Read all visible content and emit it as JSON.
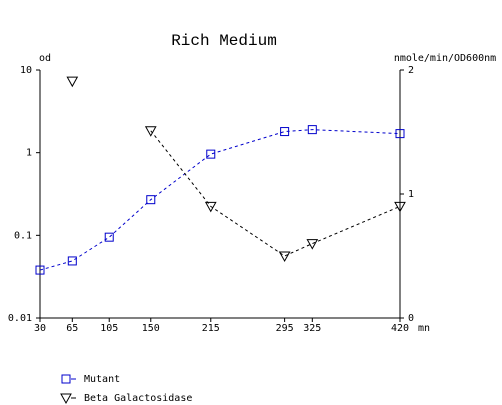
{
  "chart_data": {
    "type": "line",
    "title": "Rich Medium",
    "y_label": "od",
    "y2_label": "nmole/min/OD600nm",
    "x_label": "mn",
    "x": [
      30,
      65,
      105,
      150,
      215,
      295,
      325,
      420
    ],
    "xlim": [
      30,
      420
    ],
    "xticks": [
      30,
      65,
      105,
      150,
      215,
      295,
      325,
      420
    ],
    "ylim": [
      0.01,
      10
    ],
    "yticks": [
      0.01,
      0.1,
      1,
      10
    ],
    "y_log": true,
    "y2lim": [
      0,
      2
    ],
    "y2ticks": [
      0,
      1,
      2
    ],
    "series": [
      {
        "name": "Mutant",
        "color": "#0000cc",
        "marker": "square",
        "values": [
          0.038,
          0.049,
          0.095,
          0.27,
          0.96,
          1.8,
          1.9,
          1.7
        ]
      },
      {
        "name": "Beta Galactosidase",
        "color": "#000000",
        "marker": "triangle-down",
        "axis": "y2",
        "values": [
          null,
          1.91,
          null,
          1.51,
          0.9,
          0.5,
          0.6,
          0.9
        ]
      }
    ]
  }
}
